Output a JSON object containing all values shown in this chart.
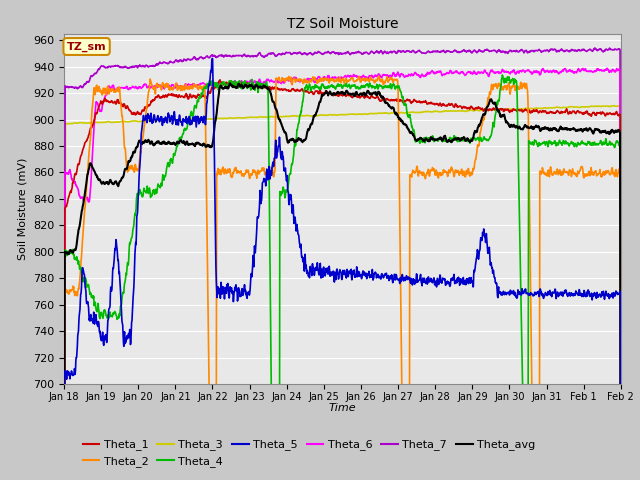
{
  "title": "TZ Soil Moisture",
  "xlabel": "Time",
  "ylabel": "Soil Moisture (mV)",
  "ylim": [
    700,
    965
  ],
  "yticks": [
    700,
    720,
    740,
    760,
    780,
    800,
    820,
    840,
    860,
    880,
    900,
    920,
    940,
    960
  ],
  "x_labels": [
    "Jan 18",
    "Jan 19",
    "Jan 20",
    "Jan 21",
    "Jan 22",
    "Jan 23",
    "Jan 24",
    "Jan 25",
    "Jan 26",
    "Jan 27",
    "Jan 28",
    "Jan 29",
    "Jan 30",
    "Jan 31",
    "Feb 1",
    "Feb 2"
  ],
  "n_points": 1500,
  "colors": {
    "Theta_1": "#cc0000",
    "Theta_2": "#ff8800",
    "Theta_3": "#cccc00",
    "Theta_4": "#00bb00",
    "Theta_5": "#0000cc",
    "Theta_6": "#ff00ff",
    "Theta_7": "#aa00cc",
    "Theta_avg": "#000000"
  },
  "bg_color": "#c8c8c8",
  "plot_bg": "#e8e8e8",
  "annotation_text": "TZ_sm",
  "annotation_color": "#990000",
  "annotation_bg": "#ffffcc",
  "annotation_border": "#cc8800",
  "figsize": [
    6.4,
    4.8
  ],
  "dpi": 100
}
